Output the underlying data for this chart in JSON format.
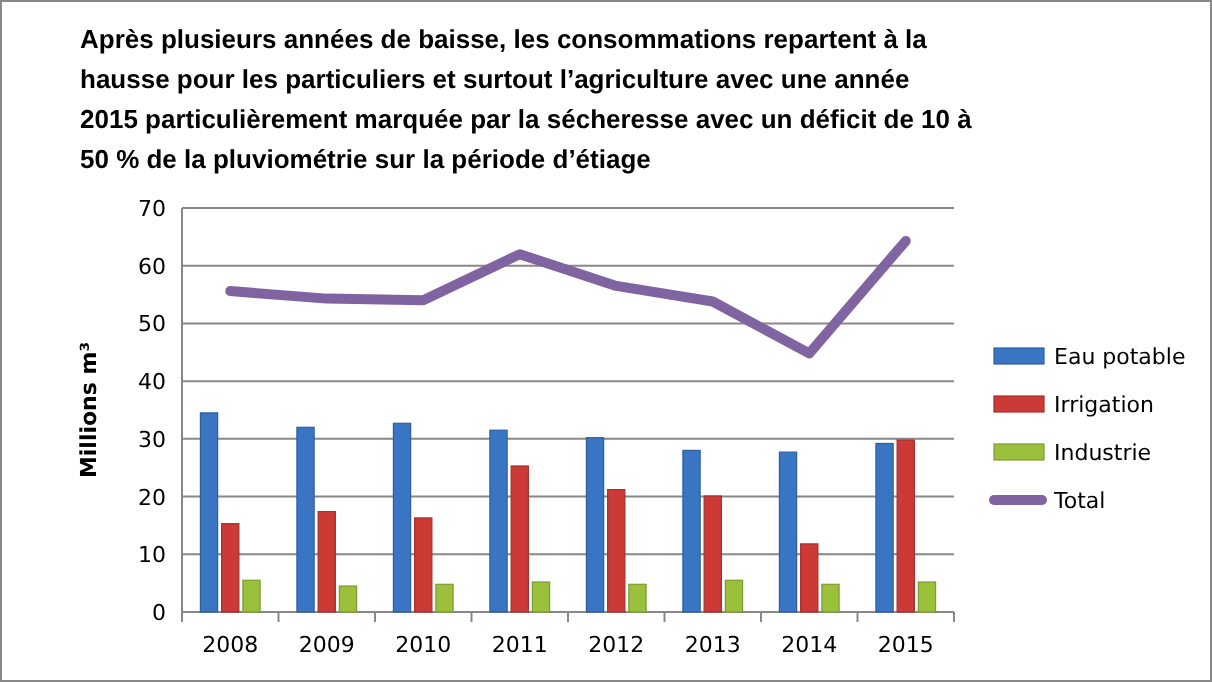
{
  "chart_data": {
    "type": "bar",
    "title": "Après plusieurs années de baisse, les consommations repartent à la hausse pour les particuliers et surtout l’agriculture avec une année 2015 particulièrement marquée par la sécheresse avec un déficit de 10 à 50 % de la pluviométrie sur la période d’étiage",
    "ylabel": "Millions  m³",
    "categories": [
      "2008",
      "2009",
      "2010",
      "2011",
      "2012",
      "2013",
      "2014",
      "2015"
    ],
    "series": [
      {
        "name": "Eau potable",
        "color": "#3a75c4",
        "values": [
          34.5,
          32,
          32.7,
          31.5,
          30.2,
          28,
          27.7,
          29.2
        ]
      },
      {
        "name": "Irrigation",
        "color": "#cc3a36",
        "values": [
          15.3,
          17.4,
          16.3,
          25.3,
          21.2,
          20.1,
          11.8,
          29.8
        ]
      },
      {
        "name": "Industrie",
        "color": "#9bc03c",
        "values": [
          5.5,
          4.5,
          4.8,
          5.2,
          4.8,
          5.5,
          4.8,
          5.2
        ]
      },
      {
        "name": "Total",
        "type": "line",
        "color": "#8064a2",
        "values": [
          55.6,
          54.3,
          54,
          62,
          56.5,
          53.8,
          44.8,
          64.3
        ]
      }
    ],
    "ylim": [
      0,
      70
    ],
    "yticks": [
      0,
      10,
      20,
      30,
      40,
      50,
      60,
      70
    ],
    "grid": "y",
    "legend": "right",
    "marker": "none"
  }
}
